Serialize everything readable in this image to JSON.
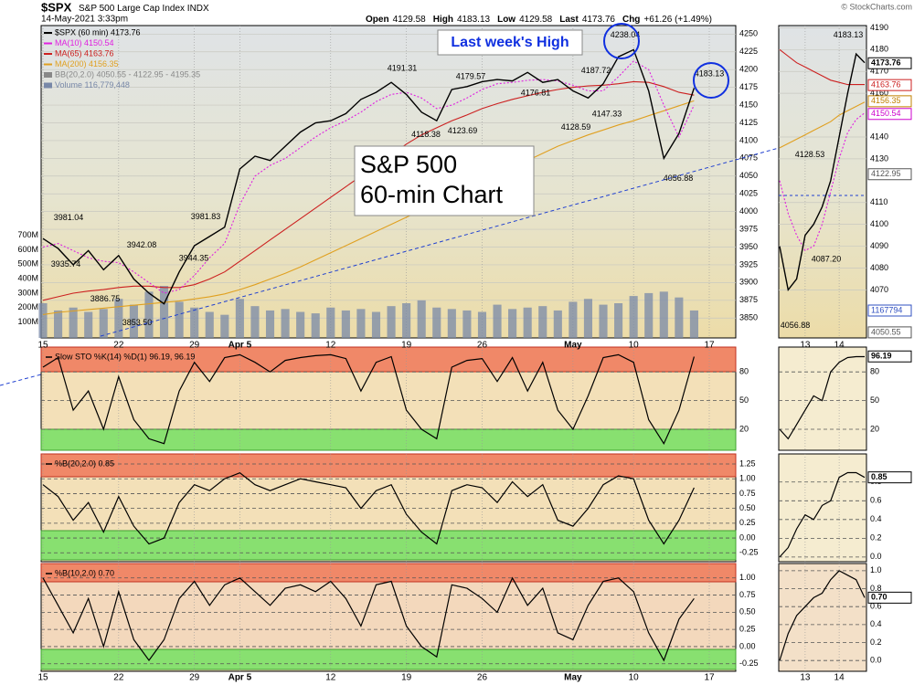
{
  "chart_data": [
    {
      "type": "line",
      "header": {
        "symbol": "$SPX",
        "name": "S&P 500 Large Cap Index",
        "exchange": "INDX",
        "date": "14-May-2021 3:33pm",
        "quote": [
          {
            "label": "Open",
            "value": "4129.58"
          },
          {
            "label": "High",
            "value": "4183.13"
          },
          {
            "label": "Low",
            "value": "4129.58"
          },
          {
            "label": "Last",
            "value": "4173.76"
          },
          {
            "label": "Chg",
            "value": "+61.26 (+1.49%)"
          }
        ],
        "credit": "© StockCharts.com"
      },
      "categories": [
        "15",
        null,
        null,
        null,
        null,
        "22",
        null,
        null,
        null,
        null,
        "29",
        null,
        null,
        "Apr 5",
        null,
        null,
        null,
        null,
        null,
        "12",
        null,
        null,
        null,
        null,
        "19",
        null,
        null,
        null,
        null,
        "26",
        null,
        null,
        null,
        null,
        null,
        "May",
        null,
        null,
        null,
        "10",
        null,
        null,
        null,
        null,
        "17"
      ],
      "series": [
        {
          "name": "$SPX (60 min) 4173.76",
          "color": "#000000",
          "values": [
            3962,
            3948,
            3925,
            3945,
            3918,
            3938,
            3905,
            3885,
            3870,
            3915,
            3952,
            3965,
            3978,
            4060,
            4078,
            4072,
            4092,
            4112,
            4125,
            4128,
            4138,
            4158,
            4168,
            4182,
            4165,
            4140,
            4128,
            4172,
            4176,
            4183,
            4186,
            4184,
            4196,
            4182,
            4186,
            4170,
            4160,
            4180,
            4218,
            4228,
            4170,
            4075,
            4110,
            4174,
            null
          ]
        },
        {
          "name": "MA(10) 4150.54",
          "color": "#e020e0",
          "dash": true,
          "values": [
            3950,
            3955,
            3945,
            3935,
            3930,
            3928,
            3915,
            3900,
            3885,
            3890,
            3910,
            3935,
            3955,
            4010,
            4050,
            4065,
            4075,
            4090,
            4105,
            4118,
            4128,
            4140,
            4155,
            4165,
            4168,
            4160,
            4145,
            4150,
            4160,
            4172,
            4180,
            4182,
            4185,
            4186,
            4184,
            4178,
            4170,
            4170,
            4190,
            4212,
            4200,
            4150,
            4105,
            4150,
            null
          ]
        },
        {
          "name": "MA(65) 4163.76",
          "color": "#cc2020",
          "values": [
            3875,
            3880,
            3885,
            3888,
            3890,
            3893,
            3895,
            3895,
            3893,
            3893,
            3897,
            3905,
            3915,
            3930,
            3945,
            3960,
            3975,
            3990,
            4005,
            4020,
            4035,
            4050,
            4065,
            4080,
            4095,
            4108,
            4118,
            4128,
            4136,
            4145,
            4152,
            4158,
            4163,
            4168,
            4172,
            4175,
            4177,
            4178,
            4180,
            4183,
            4182,
            4176,
            4168,
            4164,
            null
          ]
        },
        {
          "name": "MA(200) 4156.35",
          "color": "#e0a020",
          "values": [
            3855,
            3858,
            3860,
            3862,
            3864,
            3866,
            3868,
            3870,
            3872,
            3874,
            3877,
            3880,
            3884,
            3890,
            3897,
            3905,
            3913,
            3922,
            3932,
            3942,
            3952,
            3962,
            3972,
            3982,
            3992,
            4002,
            4012,
            4022,
            4032,
            4042,
            4052,
            4062,
            4072,
            4082,
            4092,
            4100,
            4108,
            4115,
            4122,
            4128,
            4135,
            4142,
            4149,
            4156,
            null
          ]
        },
        {
          "name": "Volume 116,779,448",
          "color": "#7888a8",
          "type": "bar",
          "axis": "y2",
          "values": [
            230,
            180,
            200,
            170,
            190,
            260,
            220,
            310,
            350,
            240,
            200,
            170,
            150,
            260,
            210,
            180,
            190,
            170,
            160,
            200,
            180,
            190,
            170,
            210,
            230,
            250,
            200,
            190,
            180,
            170,
            220,
            190,
            200,
            210,
            180,
            240,
            260,
            220,
            230,
            280,
            300,
            310,
            270,
            180,
            null
          ]
        }
      ],
      "bb_label": "BB(20,2.0) 4050.55 - 4122.95 - 4195.35",
      "ylim": [
        3822,
        4262
      ],
      "yticks": [
        3850,
        3875,
        3900,
        3925,
        3950,
        3975,
        4000,
        4025,
        4050,
        4075,
        4100,
        4125,
        4150,
        4175,
        4200,
        4225,
        4250
      ],
      "y2lim": [
        -10,
        2150
      ],
      "y2ticks": [
        {
          "value": 100,
          "label": "100M"
        },
        {
          "value": 200,
          "label": "200M"
        },
        {
          "value": 300,
          "label": "300M"
        },
        {
          "value": 400,
          "label": "400M"
        },
        {
          "value": 500,
          "label": "500M"
        },
        {
          "value": 600,
          "label": "600M"
        },
        {
          "value": 700,
          "label": "700M"
        }
      ],
      "grid": true,
      "annotations": [
        {
          "value": 3981.04,
          "label": "3981.04"
        },
        {
          "value": 3935.74,
          "label": "3935.74"
        },
        {
          "value": 3942.08,
          "label": "3942.08"
        },
        {
          "value": 3886.75,
          "label": "3886.75"
        },
        {
          "value": 3853.5,
          "label": "3853.50"
        },
        {
          "value": 3944.35,
          "label": "3944.35"
        },
        {
          "value": 3981.83,
          "label": "3981.83"
        },
        {
          "value": 4191.31,
          "label": "4191.31"
        },
        {
          "value": 4118.38,
          "label": "4118.38"
        },
        {
          "value": 4123.69,
          "label": "4123.69"
        },
        {
          "value": 4179.57,
          "label": "4179.57"
        },
        {
          "value": 4176.81,
          "label": "4176.81"
        },
        {
          "value": 4187.72,
          "label": "4187.72"
        },
        {
          "value": 4147.33,
          "label": "4147.33"
        },
        {
          "value": 4128.59,
          "label": "4128.59"
        },
        {
          "value": 4238.04,
          "label": "4238.04"
        },
        {
          "value": 4183.13,
          "label": "4183.13"
        },
        {
          "value": 4056.88,
          "label": "4056.88"
        }
      ],
      "callout": "Last week's High",
      "overlay_title": [
        "S&P 500",
        "60-min Chart"
      ]
    },
    {
      "type": "line",
      "title": "Slow STO %K(14) %D(1) 96.19, 96.19",
      "values": [
        85,
        95,
        40,
        60,
        20,
        75,
        30,
        10,
        5,
        60,
        90,
        70,
        95,
        98,
        90,
        80,
        92,
        95,
        97,
        98,
        94,
        60,
        90,
        96,
        40,
        20,
        10,
        85,
        92,
        94,
        70,
        95,
        60,
        90,
        40,
        20,
        55,
        95,
        98,
        90,
        30,
        5,
        40,
        96,
        null
      ],
      "ylim": [
        -2,
        106
      ],
      "yticks": [
        80,
        50,
        20
      ]
    },
    {
      "type": "line",
      "title": "%B(20,2.0) 0.85",
      "values": [
        0.9,
        0.7,
        0.3,
        0.6,
        0.1,
        0.7,
        0.2,
        -0.1,
        0,
        0.6,
        0.9,
        0.8,
        1,
        1.1,
        0.9,
        0.8,
        0.9,
        1,
        0.95,
        0.9,
        0.85,
        0.5,
        0.8,
        0.9,
        0.4,
        0.1,
        -0.1,
        0.8,
        0.9,
        0.85,
        0.6,
        0.95,
        0.7,
        0.9,
        0.3,
        0.2,
        0.5,
        0.9,
        1.05,
        1,
        0.3,
        -0.1,
        0.3,
        0.85,
        null
      ],
      "ylim": [
        -0.4,
        1.42
      ],
      "yticks": [
        1.25,
        {
          "value": 1,
          "label": "1.00"
        },
        0.75,
        {
          "value": 0.5,
          "label": "0.50"
        },
        0.25,
        {
          "value": 0,
          "label": "0.00"
        },
        -0.25
      ]
    },
    {
      "type": "line",
      "title": "%B(10,2.0) 0.70",
      "values": [
        1,
        0.6,
        0.2,
        0.7,
        0,
        0.8,
        0.1,
        -0.2,
        0.1,
        0.7,
        0.95,
        0.6,
        0.9,
        1,
        0.8,
        0.6,
        0.85,
        0.9,
        0.8,
        0.95,
        0.7,
        0.3,
        0.9,
        0.95,
        0.3,
        0,
        -0.15,
        0.9,
        0.85,
        0.7,
        0.5,
        1,
        0.6,
        0.85,
        0.2,
        0.1,
        0.6,
        0.95,
        1,
        0.8,
        0.2,
        -0.2,
        0.4,
        0.7,
        null
      ],
      "ylim": [
        -0.36,
        1.21
      ],
      "yticks": [
        {
          "value": 1,
          "label": "1.00"
        },
        0.75,
        {
          "value": 0.5,
          "label": "0.50"
        },
        0.25,
        {
          "value": 0,
          "label": "0.00"
        },
        -0.25
      ]
    },
    {
      "type": "line",
      "categories": [
        null,
        null,
        null,
        "13",
        null,
        null,
        null,
        "14",
        null,
        null,
        null
      ],
      "series": [
        {
          "color": "#000000",
          "values": [
            4090,
            4070,
            4075,
            4095,
            4100,
            4108,
            4120,
            4140,
            4160,
            4178,
            4174
          ]
        },
        {
          "color": "#e020e0",
          "dash": true,
          "values": [
            4120,
            4105,
            4095,
            4088,
            4090,
            4100,
            4115,
            4130,
            4142,
            4148,
            4151
          ]
        },
        {
          "color": "#cc2020",
          "values": [
            4180,
            4177,
            4174,
            4172,
            4170,
            4168,
            4166,
            4165,
            4164,
            4164,
            4164
          ]
        },
        {
          "color": "#e0a020",
          "values": [
            4135,
            4137,
            4139,
            4141,
            4143,
            4145,
            4147,
            4150,
            4152,
            4154,
            4156
          ]
        }
      ],
      "ylim": [
        4048,
        4191
      ],
      "yticks": [
        4190,
        4180,
        4170,
        4160,
        4140,
        4130,
        4110,
        4100,
        4090,
        4080,
        4070
      ],
      "annotations": [
        {
          "value": 4183.13,
          "label": "4183.13"
        },
        {
          "value": 4128.53,
          "label": "4128.53"
        },
        {
          "value": 4087.2,
          "label": "4087.20"
        },
        {
          "value": 4056.88,
          "label": "4056.88"
        }
      ],
      "tags": [
        {
          "value": 4173.76,
          "label": "4173.76",
          "color": "#000000"
        },
        {
          "value": 4163.76,
          "label": "4163.76",
          "color": "#cc2020"
        },
        {
          "value": 4156.35,
          "label": "4156.35",
          "color": "#c08000"
        },
        {
          "value": 4150.54,
          "label": "4150.54",
          "color": "#cc00cc"
        },
        {
          "value": 4122.95,
          "label": "4122.95",
          "color": "#555555"
        },
        {
          "value": 4050.55,
          "label": "4050.55",
          "color": "#555555"
        }
      ],
      "volume_tag": "1167794"
    },
    {
      "type": "line",
      "values": [
        20,
        10,
        25,
        40,
        55,
        50,
        80,
        90,
        95,
        96,
        96
      ],
      "ylim": [
        -2,
        106
      ],
      "yticks": [
        80,
        50,
        20
      ],
      "tags": [
        {
          "value": 96.19,
          "label": "96.19",
          "color": "#000000"
        }
      ]
    },
    {
      "type": "line",
      "values": [
        0,
        0.1,
        0.3,
        0.45,
        0.4,
        0.55,
        0.6,
        0.85,
        0.9,
        0.9,
        0.85
      ],
      "ylim": [
        -0.05,
        1.1
      ],
      "yticks": [
        0.8,
        0.6,
        0.4,
        0.2,
        {
          "value": 0,
          "label": "0.0"
        }
      ],
      "tags": [
        {
          "value": 0.85,
          "label": "0.85",
          "color": "#000000"
        }
      ]
    },
    {
      "type": "line",
      "values": [
        0,
        0.3,
        0.5,
        0.6,
        0.7,
        0.75,
        0.9,
        1,
        0.95,
        0.9,
        0.7
      ],
      "ylim": [
        -0.12,
        1.08
      ],
      "yticks": [
        {
          "value": 1,
          "label": "1.0"
        },
        0.8,
        0.6,
        0.4,
        0.2,
        {
          "value": 0,
          "label": "0.0"
        }
      ],
      "tags": [
        {
          "value": 0.7,
          "label": "0.70",
          "color": "#000000"
        }
      ]
    }
  ]
}
